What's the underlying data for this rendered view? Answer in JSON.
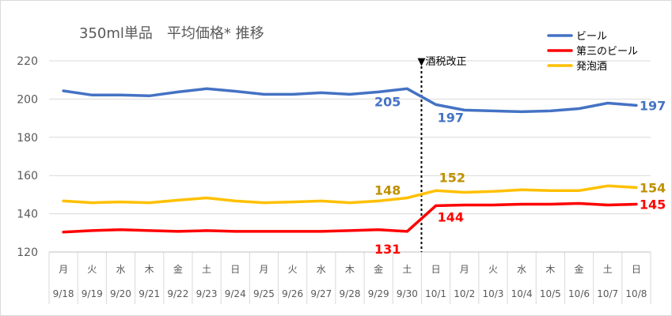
{
  "chart_data": {
    "type": "line",
    "title": "350ml単品　平均価格* 推移",
    "ylim": [
      120,
      220
    ],
    "yticks": [
      120,
      140,
      160,
      180,
      200,
      220
    ],
    "weekdays": [
      "月",
      "火",
      "水",
      "木",
      "金",
      "土",
      "日",
      "月",
      "火",
      "水",
      "木",
      "金",
      "土",
      "日",
      "月",
      "火",
      "水",
      "木",
      "金",
      "土",
      "日"
    ],
    "dates": [
      "9/18",
      "9/19",
      "9/20",
      "9/21",
      "9/22",
      "9/23",
      "9/24",
      "9/25",
      "9/26",
      "9/27",
      "9/28",
      "9/29",
      "9/30",
      "10/1",
      "10/2",
      "10/3",
      "10/4",
      "10/5",
      "10/6",
      "10/7",
      "10/8"
    ],
    "grid": true,
    "legend_position": "top-right",
    "series": [
      {
        "name": "ビール",
        "color": "#4472C4",
        "label_color": "#4472C4",
        "values": [
          204.3,
          202.1,
          202.1,
          201.7,
          203.7,
          205.4,
          204.1,
          202.5,
          202.5,
          203.3,
          202.5,
          203.7,
          205.4,
          197.1,
          194.2,
          193.8,
          193.4,
          193.8,
          195.0,
          197.9,
          196.7
        ]
      },
      {
        "name": "第三のビール",
        "color": "#FF0000",
        "label_color": "#FF0000",
        "values": [
          130.4,
          131.2,
          131.7,
          131.2,
          130.8,
          131.2,
          130.8,
          130.8,
          130.8,
          130.8,
          131.2,
          131.7,
          130.8,
          144.2,
          144.6,
          144.6,
          145.0,
          145.0,
          145.4,
          144.6,
          145.0
        ]
      },
      {
        "name": "発泡酒",
        "color": "#FFC000",
        "label_color": "#BF9000",
        "values": [
          146.7,
          145.8,
          146.2,
          145.8,
          147.1,
          148.3,
          146.7,
          145.8,
          146.2,
          146.7,
          145.8,
          146.7,
          148.3,
          152.1,
          151.2,
          151.7,
          152.5,
          152.1,
          152.1,
          154.6,
          153.7
        ]
      }
    ],
    "data_labels": [
      {
        "series": 0,
        "index": 12,
        "text": "205"
      },
      {
        "series": 0,
        "index": 13,
        "text": "197"
      },
      {
        "series": 0,
        "index": 20,
        "text": "197"
      },
      {
        "series": 1,
        "index": 12,
        "text": "131"
      },
      {
        "series": 1,
        "index": 13,
        "text": "144"
      },
      {
        "series": 1,
        "index": 20,
        "text": "145"
      },
      {
        "series": 2,
        "index": 12,
        "text": "148"
      },
      {
        "series": 2,
        "index": 13,
        "text": "152"
      },
      {
        "series": 2,
        "index": 20,
        "text": "154"
      }
    ],
    "annotation": {
      "text": "▼酒税改正",
      "between_index": 12
    }
  }
}
